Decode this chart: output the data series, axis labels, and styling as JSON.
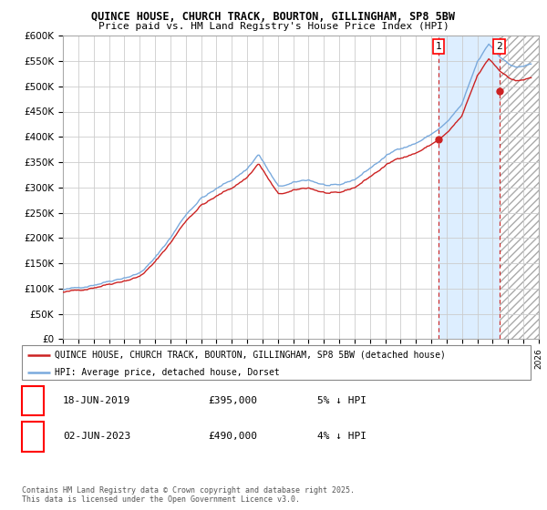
{
  "title1": "QUINCE HOUSE, CHURCH TRACK, BOURTON, GILLINGHAM, SP8 5BW",
  "title2": "Price paid vs. HM Land Registry's House Price Index (HPI)",
  "ylabel_ticks": [
    "£0",
    "£50K",
    "£100K",
    "£150K",
    "£200K",
    "£250K",
    "£300K",
    "£350K",
    "£400K",
    "£450K",
    "£500K",
    "£550K",
    "£600K"
  ],
  "ytick_values": [
    0,
    50000,
    100000,
    150000,
    200000,
    250000,
    300000,
    350000,
    400000,
    450000,
    500000,
    550000,
    600000
  ],
  "xmin": 1995,
  "xmax": 2026,
  "ymin": 0,
  "ymax": 600000,
  "hpi_color": "#7aaadd",
  "price_color": "#cc2222",
  "marker1_year": 2019.46,
  "marker2_year": 2023.42,
  "marker1_price": 395000,
  "marker2_price": 490000,
  "legend_line1": "QUINCE HOUSE, CHURCH TRACK, BOURTON, GILLINGHAM, SP8 5BW (detached house)",
  "legend_line2": "HPI: Average price, detached house, Dorset",
  "table_row1_num": "1",
  "table_row1_date": "18-JUN-2019",
  "table_row1_price": "£395,000",
  "table_row1_note": "5% ↓ HPI",
  "table_row2_num": "2",
  "table_row2_date": "02-JUN-2023",
  "table_row2_price": "£490,000",
  "table_row2_note": "4% ↓ HPI",
  "footnote": "Contains HM Land Registry data © Crown copyright and database right 2025.\nThis data is licensed under the Open Government Licence v3.0.",
  "background_color": "#ffffff",
  "plot_bg_color": "#ffffff",
  "grid_color": "#cccccc",
  "shade_between_color": "#ddeeff",
  "shaded_start": 2019.46,
  "shaded_end": 2023.42,
  "hatch_start": 2023.42,
  "hatch_end": 2026.0
}
